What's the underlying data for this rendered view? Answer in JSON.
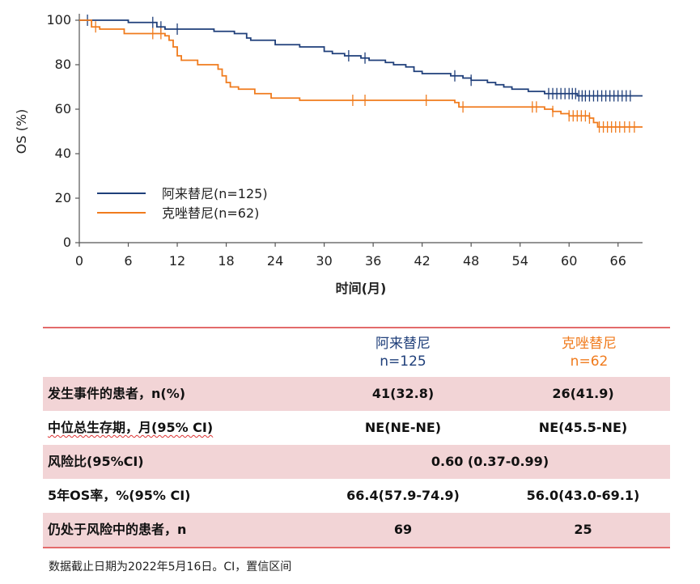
{
  "chart_data": {
    "type": "line",
    "xlabel": "时间(月)",
    "ylabel": "OS (%)",
    "xlim": [
      0,
      69
    ],
    "ylim": [
      0,
      100
    ],
    "xticks": [
      0,
      6,
      12,
      18,
      24,
      30,
      36,
      42,
      48,
      54,
      60,
      66
    ],
    "yticks": [
      0,
      20,
      40,
      60,
      80,
      100
    ],
    "legend_position": "lower-left",
    "series": [
      {
        "name": "阿来替尼(n=125)",
        "color": "#1f3f7a",
        "step_points": [
          [
            0,
            100
          ],
          [
            1.5,
            100
          ],
          [
            6,
            99
          ],
          [
            9.5,
            97
          ],
          [
            10.5,
            96
          ],
          [
            16,
            96
          ],
          [
            16.5,
            95
          ],
          [
            19,
            94
          ],
          [
            20.5,
            92
          ],
          [
            21,
            91
          ],
          [
            24,
            89
          ],
          [
            27,
            88
          ],
          [
            30,
            86
          ],
          [
            31,
            85
          ],
          [
            32.5,
            84
          ],
          [
            34.5,
            83
          ],
          [
            35.5,
            82
          ],
          [
            36.5,
            82
          ],
          [
            37.5,
            81
          ],
          [
            38.5,
            80
          ],
          [
            40,
            79
          ],
          [
            41,
            77
          ],
          [
            42,
            76
          ],
          [
            45.5,
            75
          ],
          [
            47,
            74
          ],
          [
            48,
            73
          ],
          [
            50,
            72
          ],
          [
            51,
            71
          ],
          [
            52,
            70
          ],
          [
            53,
            69
          ],
          [
            55,
            68
          ],
          [
            57,
            67
          ],
          [
            61,
            66
          ],
          [
            69,
            66
          ]
        ],
        "censor_x": [
          1,
          9,
          10,
          12,
          33,
          35,
          46,
          48,
          57.5,
          58,
          58.5,
          59,
          59.5,
          60,
          60.4,
          60.8,
          61.2,
          61.6,
          62,
          62.5,
          63,
          63.5,
          64,
          64.5,
          65,
          65.5,
          66,
          66.5,
          67,
          67.5
        ]
      },
      {
        "name": "克唑替尼(n=62)",
        "color": "#f07b1d",
        "step_points": [
          [
            0,
            100
          ],
          [
            1.5,
            97
          ],
          [
            2.5,
            96
          ],
          [
            5.5,
            94
          ],
          [
            10.5,
            93
          ],
          [
            11,
            91
          ],
          [
            11.5,
            88
          ],
          [
            12,
            84
          ],
          [
            12.5,
            82
          ],
          [
            14.5,
            80
          ],
          [
            17,
            78
          ],
          [
            17.5,
            75
          ],
          [
            18,
            72
          ],
          [
            18.5,
            70
          ],
          [
            19.5,
            69
          ],
          [
            21.5,
            67
          ],
          [
            23.5,
            65
          ],
          [
            27,
            64
          ],
          [
            46,
            63
          ],
          [
            46.5,
            61
          ],
          [
            56,
            61
          ],
          [
            57,
            60
          ],
          [
            58,
            59
          ],
          [
            59,
            58
          ],
          [
            60,
            57
          ],
          [
            62.5,
            56
          ],
          [
            63,
            54
          ],
          [
            63.5,
            52
          ],
          [
            69,
            52
          ]
        ],
        "censor_x": [
          2,
          9,
          10,
          33.5,
          35,
          42.5,
          47,
          55.5,
          56,
          58,
          60,
          60.5,
          61,
          61.5,
          62,
          62.5,
          63.7,
          64.2,
          64.7,
          65.2,
          65.7,
          66.2,
          66.8,
          67.4,
          68
        ]
      }
    ]
  },
  "table": {
    "col1_name": "阿来替尼",
    "col1_n": "n=125",
    "col2_name": "克唑替尼",
    "col2_n": "n=62",
    "rows": [
      {
        "label": "发生事件的患者，n(%)",
        "v1": "41(32.8)",
        "v2": "26(41.9)"
      },
      {
        "label": "中位总生存期，月(95% CI)",
        "v1": "NE(NE-NE)",
        "v2": "NE(45.5-NE)"
      },
      {
        "label": "风险比(95%CI)",
        "span": "0.60 (0.37-0.99)"
      },
      {
        "label": "5年OS率，%(95% CI)",
        "v1": "66.4(57.9-74.9)",
        "v2": "56.0(43.0-69.1)"
      },
      {
        "label": "仍处于风险中的患者，n",
        "v1": "69",
        "v2": "25"
      }
    ]
  },
  "footnote": "数据截止日期为2022年5月16日。CI，置信区间"
}
